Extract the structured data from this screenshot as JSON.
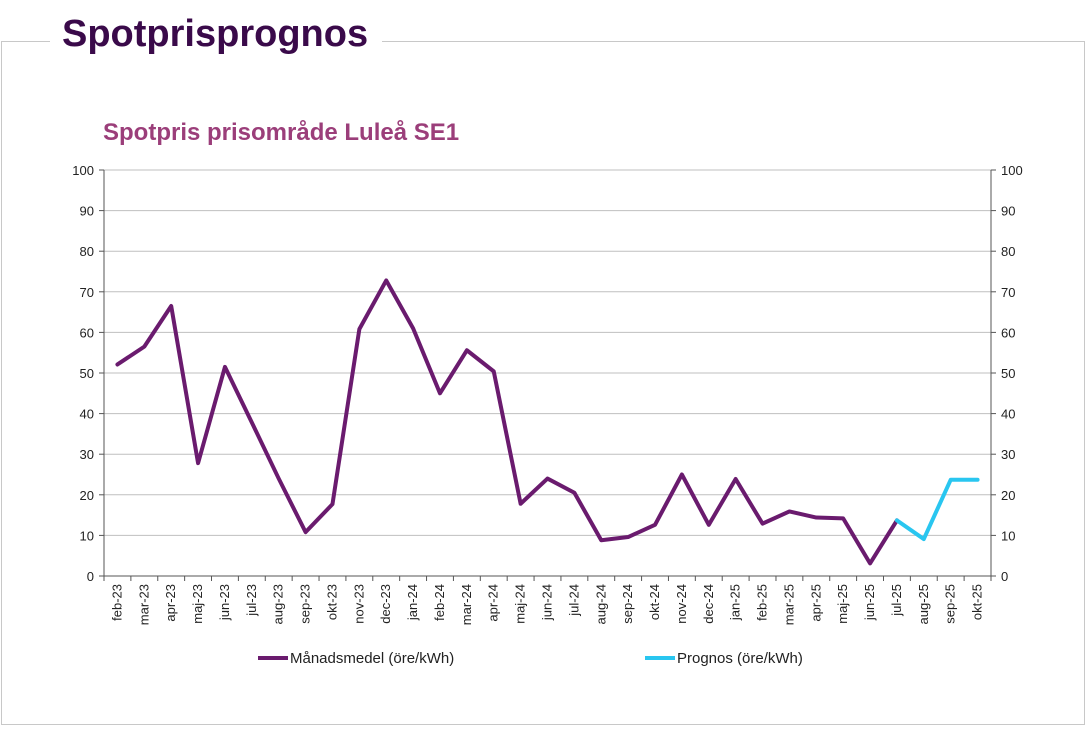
{
  "page": {
    "heading": "Spotprisprognos"
  },
  "colors": {
    "heading": "#3a0a4a",
    "title": "#9b3e7a",
    "actual": "#6a1b6e",
    "forecast": "#29c6f0",
    "grid": "#bfbfbf"
  },
  "chart_data": {
    "type": "line",
    "title": "Spotpris prisområde Luleå SE1",
    "xlabel": "",
    "ylabel": "",
    "ylim": [
      0,
      100
    ],
    "yticks": [
      0,
      10,
      20,
      30,
      40,
      50,
      60,
      70,
      80,
      90,
      100
    ],
    "grid": true,
    "legend_position": "bottom",
    "categories": [
      "feb-23",
      "mar-23",
      "apr-23",
      "maj-23",
      "jun-23",
      "jul-23",
      "aug-23",
      "sep-23",
      "okt-23",
      "nov-23",
      "dec-23",
      "jan-24",
      "feb-24",
      "mar-24",
      "apr-24",
      "maj-24",
      "jun-24",
      "jul-24",
      "aug-24",
      "sep-24",
      "okt-24",
      "nov-24",
      "dec-24",
      "jan-25",
      "feb-25",
      "mar-25",
      "apr-25",
      "maj-25",
      "jun-25",
      "jul-25",
      "aug-25",
      "sep-25",
      "okt-25"
    ],
    "series": [
      {
        "name": "Månadsmedel (öre/kWh)",
        "color": "#6a1b6e",
        "values": [
          52.1,
          56.5,
          66.5,
          27.8,
          51.5,
          37.8,
          24.0,
          10.8,
          17.7,
          60.8,
          72.8,
          61.0,
          45.0,
          55.6,
          50.4,
          17.8,
          24.0,
          20.5,
          8.8,
          9.6,
          12.6,
          25.0,
          12.6,
          23.9,
          12.9,
          15.9,
          14.4,
          14.2,
          3.1,
          13.7,
          null,
          null,
          null
        ]
      },
      {
        "name": "Prognos (öre/kWh)",
        "color": "#29c6f0",
        "values": [
          null,
          null,
          null,
          null,
          null,
          null,
          null,
          null,
          null,
          null,
          null,
          null,
          null,
          null,
          null,
          null,
          null,
          null,
          null,
          null,
          null,
          null,
          null,
          null,
          null,
          null,
          null,
          null,
          null,
          13.7,
          9.1,
          23.7,
          23.7
        ]
      }
    ]
  }
}
